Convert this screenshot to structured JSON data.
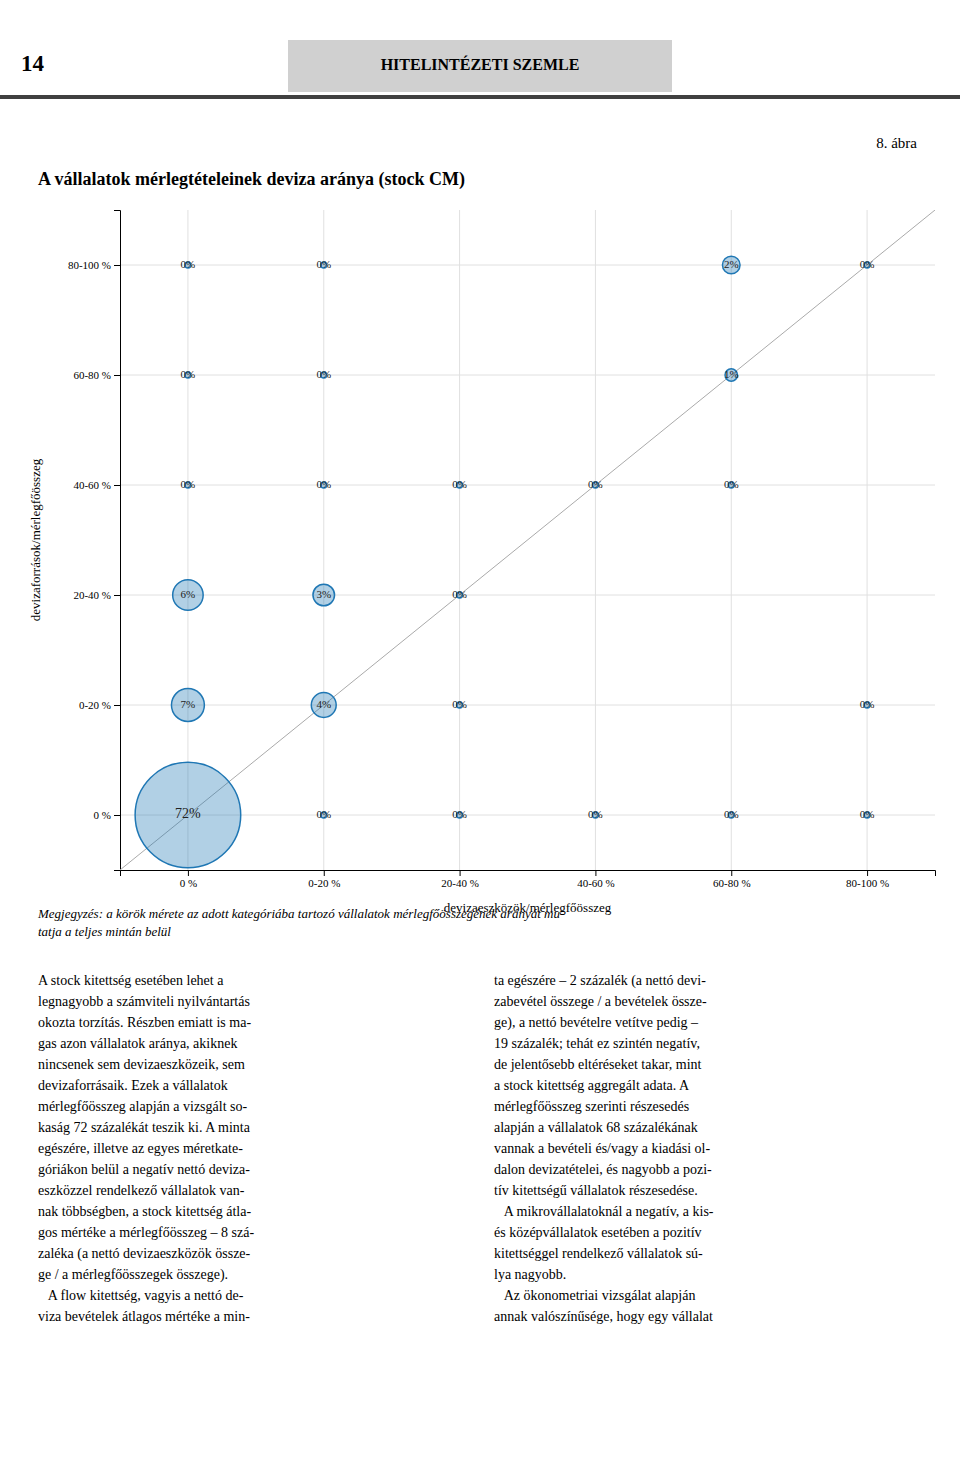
{
  "page": {
    "page_number": "14",
    "header_text": "HITELINTÉZETI SZEMLE",
    "figure_number": "8. ábra",
    "note": "Megjegyzés: a körök mérete az adott kategóriába tartozó vállalatok mérlegfőösszegének arányát mu-\ntatja a teljes mintán belül",
    "body_left": "A stock kitettség esetében lehet a\nlegnagyobb a számviteli nyilvántartás\nokozta torzítás. Részben emiatt is ma-\ngas azon vállalatok aránya, akiknek\nnincsenek sem devizaeszközeik, sem\ndevizaforrásaik. Ezek a vállalatok\nmérlegfőösszeg alapján a vizsgált so-\nkaság 72 százalékát teszik ki. A minta\negészére, illetve az egyes méretkate-\ngóriákon belül a negatív nettó deviza-\neszközzel rendelkező vállalatok van-\nnak többségben, a stock kitettség átla-\ngos mértéke a mérlegfőösszeg – 8 szá-\nzaléka (a nettó devizaeszközök össze-\nge / a mérlegfőösszegek összege).\n   A flow kitettség, vagyis a nettó de-\nviza bevételek átlagos mértéke a min-",
    "body_right": "ta egészére – 2 százalék (a nettó devi-\nzabevétel összege / a bevételek össze-\nge), a nettó bevételre vetítve pedig –\n19 százalék; tehát ez szintén negatív,\nde jelentősebb eltéréseket takar, mint\na stock kitettség aggregált adata. A\nmérlegfőösszeg szerinti részesedés\nalapján a vállalatok 68 százalékának\nvannak a bevételi és/vagy a kiadási ol-\ndalon devizatételei, és nagyobb a pozi-\ntív kitettségű vállalatok részesedése.\n   A mikrovállalatoknál a negatív, a kis-\nés középvállalatok esetében a pozitív\nkitettséggel rendelkező vállalatok sú-\nlya nagyobb.\n   Az ökonometriai vizsgálat alapján\nannak valószínűsége, hogy egy vállalat"
  },
  "chart_data": {
    "type": "bubble",
    "title": "A vállalatok mérlegtételeinek deviza aránya (stock CM)",
    "xlabel": "devizaeszközök/mérlegfőösszeg",
    "ylabel": "devizaforrások/mérlegfőösszeg",
    "x_categories": [
      "0 %",
      "0-20 %",
      "20-40 %",
      "40-60 %",
      "60-80 %",
      "80-100 %"
    ],
    "y_categories": [
      "0 %",
      "0-20 %",
      "20-40 %",
      "40-60 %",
      "60-80 %",
      "80-100 %"
    ],
    "grid": true,
    "data_labels": true,
    "series": [
      {
        "x": [
          "0 %",
          "0 %",
          "0 %",
          "0-20 %",
          "0-20 %",
          "60-80 %",
          "60-80 %",
          "0 %",
          "0-20 %",
          "80-100 %",
          "0 %",
          "0-20 %",
          "0 %",
          "0-20 %",
          "20-40 %",
          "40-60 %",
          "60-80 %",
          "20-40 %",
          "20-40 %",
          "80-100 %",
          "0-20 %",
          "20-40 %",
          "40-60 %",
          "60-80 %",
          "80-100 %"
        ],
        "y": [
          "0 %",
          "0-20 %",
          "20-40 %",
          "0-20 %",
          "20-40 %",
          "80-100 %",
          "60-80 %",
          "80-100 %",
          "80-100 %",
          "80-100 %",
          "60-80 %",
          "60-80 %",
          "40-60 %",
          "40-60 %",
          "40-60 %",
          "40-60 %",
          "40-60 %",
          "20-40 %",
          "0-20 %",
          "0-20 %",
          "0 %",
          "0 %",
          "0 %",
          "0 %",
          "0 %"
        ],
        "sizes": [
          72,
          7,
          6,
          4,
          3,
          2,
          1,
          0,
          0,
          0,
          0,
          0,
          0,
          0,
          0,
          0,
          0,
          0,
          0,
          0,
          0,
          0,
          0,
          0,
          0
        ],
        "value_labels": [
          "72%",
          "7%",
          "6%",
          "4%",
          "3%",
          "2%",
          "1%",
          "0%",
          "0%",
          "0%",
          "0%",
          "0%",
          "0%",
          "0%",
          "0%",
          "0%",
          "0%",
          "0%",
          "0%",
          "0%",
          "0%",
          "0%",
          "0%",
          "0%",
          "0%"
        ]
      }
    ]
  }
}
